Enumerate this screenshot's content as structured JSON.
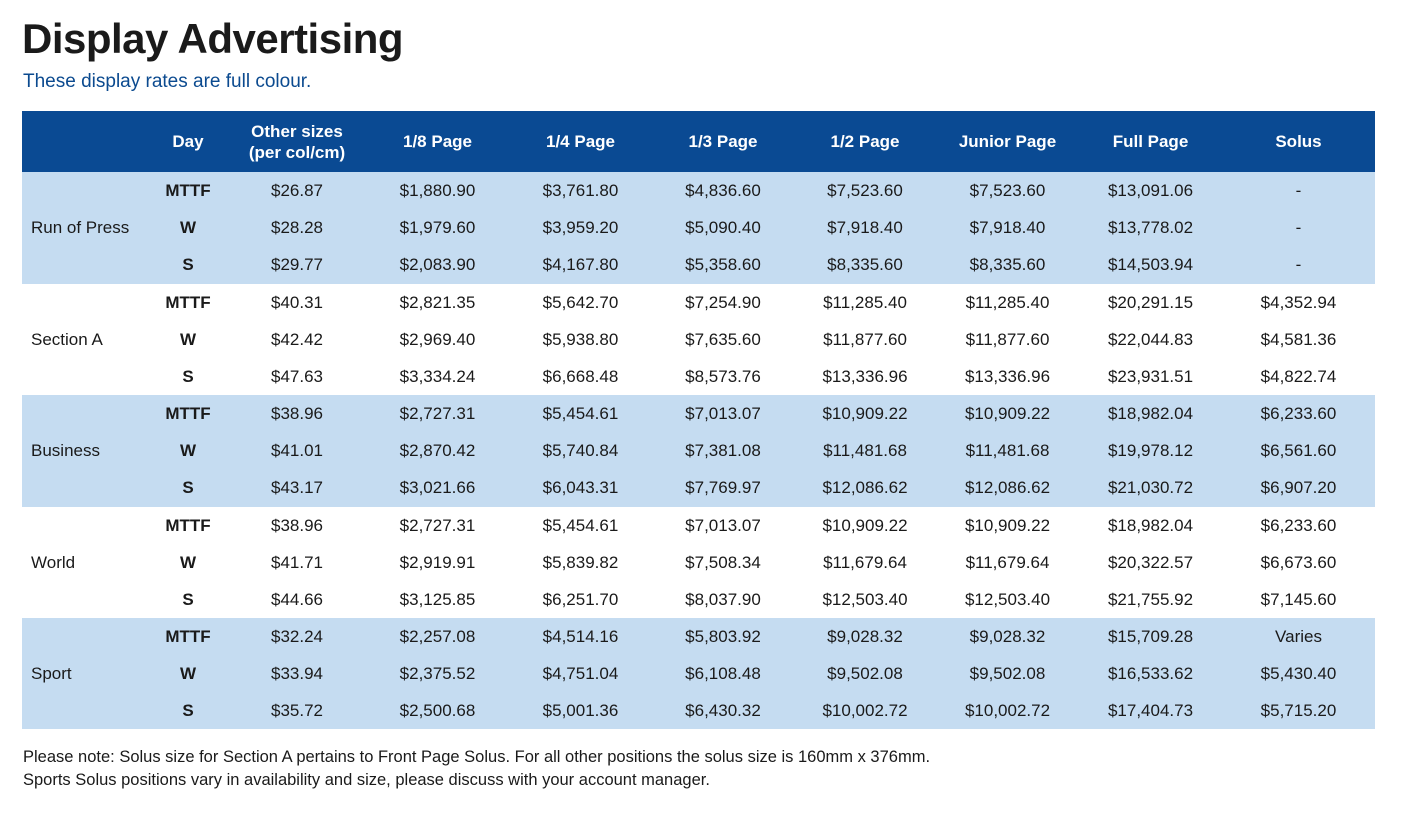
{
  "page": {
    "title": "Display Advertising",
    "subtitle": "These display rates are full colour."
  },
  "colors": {
    "header_bg": "#0a4a93",
    "band_light_blue": "#c5dcf1",
    "subtitle_blue": "#0b4a8f"
  },
  "table": {
    "columns": [
      "",
      "Day",
      "Other sizes (per col/cm)",
      "1/8 Page",
      "1/4 Page",
      "1/3 Page",
      "1/2 Page",
      "Junior Page",
      "Full Page",
      "Solus"
    ],
    "header_other_sizes_line1": "Other sizes",
    "header_other_sizes_line2": "(per col/cm)",
    "sections": [
      {
        "name": "Run of Press",
        "rows": [
          {
            "day": "MTTF",
            "other": "$26.87",
            "p18": "$1,880.90",
            "p14": "$3,761.80",
            "p13": "$4,836.60",
            "p12": "$7,523.60",
            "junior": "$7,523.60",
            "full": "$13,091.06",
            "solus": "-"
          },
          {
            "day": "W",
            "other": "$28.28",
            "p18": "$1,979.60",
            "p14": "$3,959.20",
            "p13": "$5,090.40",
            "p12": "$7,918.40",
            "junior": "$7,918.40",
            "full": "$13,778.02",
            "solus": "-"
          },
          {
            "day": "S",
            "other": "$29.77",
            "p18": "$2,083.90",
            "p14": "$4,167.80",
            "p13": "$5,358.60",
            "p12": "$8,335.60",
            "junior": "$8,335.60",
            "full": "$14,503.94",
            "solus": "-"
          }
        ]
      },
      {
        "name": "Section A",
        "rows": [
          {
            "day": "MTTF",
            "other": "$40.31",
            "p18": "$2,821.35",
            "p14": "$5,642.70",
            "p13": "$7,254.90",
            "p12": "$11,285.40",
            "junior": "$11,285.40",
            "full": "$20,291.15",
            "solus": "$4,352.94"
          },
          {
            "day": "W",
            "other": "$42.42",
            "p18": "$2,969.40",
            "p14": "$5,938.80",
            "p13": "$7,635.60",
            "p12": "$11,877.60",
            "junior": "$11,877.60",
            "full": "$22,044.83",
            "solus": "$4,581.36"
          },
          {
            "day": "S",
            "other": "$47.63",
            "p18": "$3,334.24",
            "p14": "$6,668.48",
            "p13": "$8,573.76",
            "p12": "$13,336.96",
            "junior": "$13,336.96",
            "full": "$23,931.51",
            "solus": "$4,822.74"
          }
        ]
      },
      {
        "name": "Business",
        "rows": [
          {
            "day": "MTTF",
            "other": "$38.96",
            "p18": "$2,727.31",
            "p14": "$5,454.61",
            "p13": "$7,013.07",
            "p12": "$10,909.22",
            "junior": "$10,909.22",
            "full": "$18,982.04",
            "solus": "$6,233.60"
          },
          {
            "day": "W",
            "other": "$41.01",
            "p18": "$2,870.42",
            "p14": "$5,740.84",
            "p13": "$7,381.08",
            "p12": "$11,481.68",
            "junior": "$11,481.68",
            "full": "$19,978.12",
            "solus": "$6,561.60"
          },
          {
            "day": "S",
            "other": "$43.17",
            "p18": "$3,021.66",
            "p14": "$6,043.31",
            "p13": "$7,769.97",
            "p12": "$12,086.62",
            "junior": "$12,086.62",
            "full": "$21,030.72",
            "solus": "$6,907.20"
          }
        ]
      },
      {
        "name": "World",
        "rows": [
          {
            "day": "MTTF",
            "other": "$38.96",
            "p18": "$2,727.31",
            "p14": "$5,454.61",
            "p13": "$7,013.07",
            "p12": "$10,909.22",
            "junior": "$10,909.22",
            "full": "$18,982.04",
            "solus": "$6,233.60"
          },
          {
            "day": "W",
            "other": "$41.71",
            "p18": "$2,919.91",
            "p14": "$5,839.82",
            "p13": "$7,508.34",
            "p12": "$11,679.64",
            "junior": "$11,679.64",
            "full": "$20,322.57",
            "solus": "$6,673.60"
          },
          {
            "day": "S",
            "other": "$44.66",
            "p18": "$3,125.85",
            "p14": "$6,251.70",
            "p13": "$8,037.90",
            "p12": "$12,503.40",
            "junior": "$12,503.40",
            "full": "$21,755.92",
            "solus": "$7,145.60"
          }
        ]
      },
      {
        "name": "Sport",
        "rows": [
          {
            "day": "MTTF",
            "other": "$32.24",
            "p18": "$2,257.08",
            "p14": "$4,514.16",
            "p13": "$5,803.92",
            "p12": "$9,028.32",
            "junior": "$9,028.32",
            "full": "$15,709.28",
            "solus": "Varies"
          },
          {
            "day": "W",
            "other": "$33.94",
            "p18": "$2,375.52",
            "p14": "$4,751.04",
            "p13": "$6,108.48",
            "p12": "$9,502.08",
            "junior": "$9,502.08",
            "full": "$16,533.62",
            "solus": "$5,430.40"
          },
          {
            "day": "S",
            "other": "$35.72",
            "p18": "$2,500.68",
            "p14": "$5,001.36",
            "p13": "$6,430.32",
            "p12": "$10,002.72",
            "junior": "$10,002.72",
            "full": "$17,404.73",
            "solus": "$5,715.20"
          }
        ]
      }
    ]
  },
  "notes": [
    "Please note: Solus size for Section A pertains to Front Page Solus. For all other positions the solus size is 160mm x 376mm.",
    "Sports Solus positions vary in availability and size, please discuss with your account manager."
  ]
}
